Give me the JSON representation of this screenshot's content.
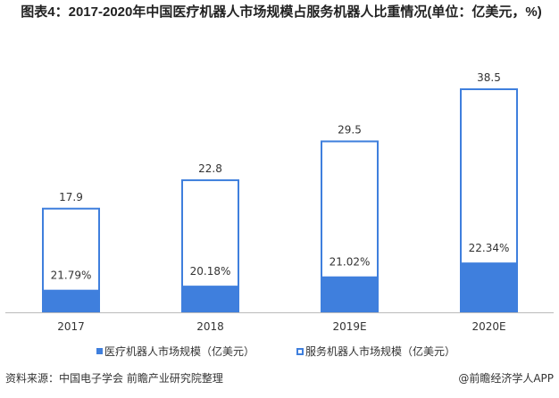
{
  "title": "图表4：2017-2020年中国医疗机器人市场规模占服务机器人比重情况(单位：亿美元，%)",
  "source": "资料来源：中国电子学会 前瞻产业研究院整理",
  "credit": "@前瞻经济学人APP",
  "colors": {
    "medical": "#3f7fdd",
    "service_border": "#3f7fdd",
    "service_fill": "#ffffff"
  },
  "chart_data": {
    "type": "bar",
    "stacked": "overlay",
    "categories": [
      "2017",
      "2018",
      "2019E",
      "2020E"
    ],
    "series": [
      {
        "name": "服务机器人市场规模（亿美元）",
        "values": [
          17.9,
          22.8,
          29.5,
          38.5
        ],
        "labels": [
          "17.9",
          "22.8",
          "29.5",
          "38.5"
        ]
      },
      {
        "name": "医疗机器人市场规模（亿美元）",
        "share_pct": [
          21.79,
          20.18,
          21.02,
          22.34
        ],
        "labels": [
          "21.79%",
          "20.18%",
          "21.02%",
          "22.34%"
        ]
      }
    ],
    "legend": "bottom",
    "grid": false,
    "ylim": [
      0,
      38.5
    ]
  }
}
